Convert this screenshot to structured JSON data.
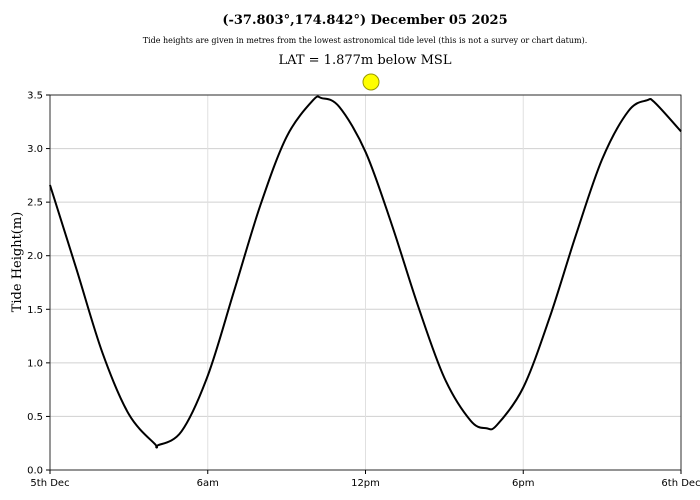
{
  "chart_data": {
    "type": "line",
    "title": "(-37.803°,174.842°) December 05 2025",
    "subtitle": "Tide heights are given in metres from the lowest astronomical tide level (this is not a survey or chart datum).",
    "note": "LAT = 1.877m below MSL",
    "y_label": "Tide Height(m)",
    "x": [
      0,
      1,
      2,
      3,
      4,
      4.1,
      5,
      6,
      7,
      8,
      9,
      10,
      10.34,
      11,
      12,
      13,
      14,
      15,
      16,
      16.6,
      17,
      18,
      19,
      20,
      21,
      22,
      22.7,
      23,
      24
    ],
    "series": [
      {
        "color": "#000000",
        "values": [
          2.66,
          1.88,
          1.09,
          0.52,
          0.24,
          0.23,
          0.36,
          0.88,
          1.67,
          2.47,
          3.11,
          3.45,
          3.47,
          3.39,
          2.97,
          2.29,
          1.53,
          0.86,
          0.46,
          0.39,
          0.42,
          0.77,
          1.42,
          2.19,
          2.9,
          3.35,
          3.45,
          3.43,
          3.16
        ]
      }
    ],
    "xlim": [
      0,
      24
    ],
    "xticks": [
      {
        "value": 0,
        "label": "5th Dec"
      },
      {
        "value": 6,
        "label": "6am"
      },
      {
        "value": 12,
        "label": "12pm"
      },
      {
        "value": 18,
        "label": "6pm"
      },
      {
        "value": 24,
        "label": "6th Dec"
      }
    ],
    "ylim": [
      0,
      3.5
    ],
    "yticks": [
      {
        "value": 0,
        "label": "0.0"
      },
      0.5,
      {
        "value": 1,
        "label": "1.0"
      },
      1.5,
      {
        "value": 2,
        "label": "2.0"
      },
      2.5,
      {
        "value": 3,
        "label": "3.0"
      },
      3.5
    ],
    "grid": true
  }
}
